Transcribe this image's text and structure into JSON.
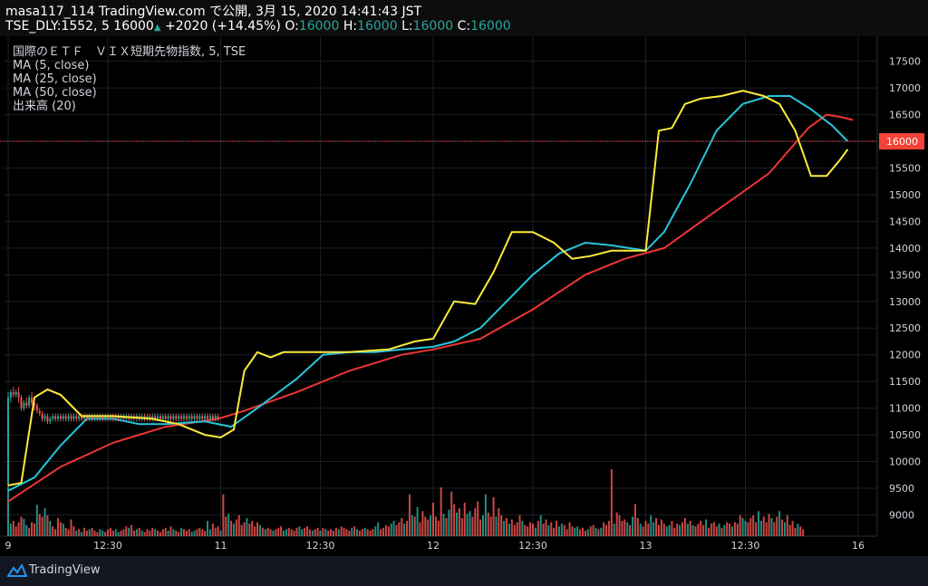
{
  "header": {
    "publisher": "masa117_114 TradingView.com で公開, 3月 15, 2020 14:41:43 JST",
    "symbol_line": "TSE_DLY:1552, 5 16000",
    "change": "+2020 (+14.45%)",
    "o_label": "O:",
    "o_value": "16000",
    "h_label": "H:",
    "h_value": "16000",
    "l_label": "L:",
    "l_value": "16000",
    "c_label": "C:",
    "c_value": "16000"
  },
  "legend": [
    "国際のＥＴＦ　ＶＩＸ短期先物指数, 5, TSE",
    "MA (5, close)",
    "MA (25, close)",
    "MA (50, close)",
    "出来高 (20)"
  ],
  "footer": {
    "brand": "TradingView"
  },
  "colors": {
    "up": "#26a69a",
    "down": "#ef5350",
    "ma5": "#ffeb3b",
    "ma25": "#26c6da",
    "ma50": "#ef3535",
    "price_line": "#ef5350",
    "price_badge": "#f44336"
  },
  "chart_data": {
    "type": "candlestick",
    "ylim": [
      8600,
      17800
    ],
    "y_ticks": [
      9000,
      9500,
      10000,
      10500,
      11000,
      11500,
      12000,
      12500,
      13000,
      13500,
      14000,
      14500,
      15000,
      15500,
      16000,
      16500,
      17000,
      17500
    ],
    "x_ticks": [
      {
        "label": "9",
        "i": 0
      },
      {
        "label": "12:30",
        "i": 38
      },
      {
        "label": "11",
        "i": 81
      },
      {
        "label": "12:30",
        "i": 119
      },
      {
        "label": "12",
        "i": 162
      },
      {
        "label": "12:30",
        "i": 200
      },
      {
        "label": "13",
        "i": 243
      },
      {
        "label": "12:30",
        "i": 281
      },
      {
        "label": "16",
        "i": 324
      }
    ],
    "last_price": 16000,
    "ma5": [
      [
        0,
        9550
      ],
      [
        5,
        9600
      ],
      [
        10,
        11200
      ],
      [
        15,
        11350
      ],
      [
        20,
        11250
      ],
      [
        28,
        10850
      ],
      [
        40,
        10850
      ],
      [
        55,
        10800
      ],
      [
        65,
        10700
      ],
      [
        75,
        10500
      ],
      [
        81,
        10450
      ],
      [
        86,
        10600
      ],
      [
        90,
        11700
      ],
      [
        95,
        12050
      ],
      [
        100,
        11950
      ],
      [
        105,
        12050
      ],
      [
        115,
        12050
      ],
      [
        130,
        12050
      ],
      [
        145,
        12100
      ],
      [
        155,
        12250
      ],
      [
        162,
        12300
      ],
      [
        170,
        13000
      ],
      [
        178,
        12950
      ],
      [
        185,
        13550
      ],
      [
        192,
        14300
      ],
      [
        200,
        14300
      ],
      [
        208,
        14100
      ],
      [
        215,
        13800
      ],
      [
        222,
        13850
      ],
      [
        230,
        13950
      ],
      [
        243,
        13950
      ],
      [
        248,
        16200
      ],
      [
        253,
        16250
      ],
      [
        258,
        16700
      ],
      [
        264,
        16800
      ],
      [
        272,
        16850
      ],
      [
        280,
        16950
      ],
      [
        288,
        16850
      ],
      [
        294,
        16700
      ],
      [
        300,
        16200
      ],
      [
        306,
        15350
      ],
      [
        312,
        15350
      ],
      [
        317,
        15650
      ],
      [
        320,
        15850
      ]
    ],
    "ma25": [
      [
        0,
        9450
      ],
      [
        10,
        9700
      ],
      [
        20,
        10300
      ],
      [
        30,
        10800
      ],
      [
        40,
        10800
      ],
      [
        50,
        10700
      ],
      [
        60,
        10700
      ],
      [
        75,
        10750
      ],
      [
        85,
        10650
      ],
      [
        95,
        11000
      ],
      [
        110,
        11550
      ],
      [
        120,
        12000
      ],
      [
        130,
        12050
      ],
      [
        140,
        12050
      ],
      [
        150,
        12100
      ],
      [
        162,
        12150
      ],
      [
        170,
        12250
      ],
      [
        180,
        12500
      ],
      [
        190,
        13000
      ],
      [
        200,
        13500
      ],
      [
        210,
        13900
      ],
      [
        220,
        14100
      ],
      [
        230,
        14050
      ],
      [
        243,
        13950
      ],
      [
        250,
        14300
      ],
      [
        260,
        15200
      ],
      [
        270,
        16200
      ],
      [
        280,
        16700
      ],
      [
        290,
        16850
      ],
      [
        298,
        16850
      ],
      [
        306,
        16600
      ],
      [
        314,
        16300
      ],
      [
        320,
        16000
      ]
    ],
    "ma50": [
      [
        0,
        9250
      ],
      [
        20,
        9900
      ],
      [
        40,
        10350
      ],
      [
        60,
        10650
      ],
      [
        80,
        10800
      ],
      [
        90,
        10950
      ],
      [
        110,
        11300
      ],
      [
        130,
        11700
      ],
      [
        150,
        12000
      ],
      [
        162,
        12100
      ],
      [
        180,
        12300
      ],
      [
        200,
        12850
      ],
      [
        220,
        13500
      ],
      [
        235,
        13800
      ],
      [
        250,
        14000
      ],
      [
        270,
        14700
      ],
      [
        290,
        15400
      ],
      [
        305,
        16250
      ],
      [
        312,
        16500
      ],
      [
        318,
        16450
      ],
      [
        322,
        16400
      ]
    ],
    "candles": [
      [
        0,
        9550,
        11200,
        9500,
        11300
      ],
      [
        1,
        11200,
        11300,
        11100,
        11350
      ],
      [
        2,
        11300,
        11250,
        11200,
        11400
      ],
      [
        3,
        11250,
        11300,
        11200,
        11350
      ],
      [
        4,
        11300,
        11200,
        11100,
        11400
      ],
      [
        5,
        11200,
        11000,
        10950,
        11250
      ],
      [
        6,
        11000,
        11100,
        10950,
        11150
      ],
      [
        7,
        11100,
        11050,
        11000,
        11200
      ],
      [
        8,
        11050,
        11200,
        11000,
        11250
      ],
      [
        9,
        11200,
        11100,
        11050,
        11300
      ],
      [
        10,
        11100,
        11050,
        10950,
        11150
      ],
      [
        11,
        11050,
        10950,
        10900,
        11100
      ],
      [
        12,
        10950,
        10900,
        10850,
        11000
      ],
      [
        13,
        10900,
        10800,
        10750,
        10950
      ],
      [
        14,
        10800,
        10850,
        10750,
        10900
      ],
      [
        15,
        10850,
        10750,
        10700,
        10900
      ],
      [
        16,
        10750,
        10800,
        10700,
        10850
      ],
      [
        17,
        10800,
        10850,
        10750,
        10900
      ],
      [
        18,
        10850,
        10800,
        10750,
        10900
      ],
      [
        19,
        10800,
        10850,
        10750,
        10900
      ],
      [
        20,
        10850,
        10800,
        10750,
        10900
      ],
      [
        21,
        10800,
        10850,
        10750,
        10900
      ],
      [
        22,
        10850,
        10800,
        10750,
        10900
      ],
      [
        23,
        10800,
        10850,
        10750,
        10900
      ],
      [
        24,
        10850,
        10800,
        10750,
        10900
      ],
      [
        25,
        10800,
        10850,
        10750,
        10900
      ],
      [
        26,
        10850,
        10800,
        10750,
        10900
      ],
      [
        27,
        10800,
        10850,
        10750,
        10900
      ],
      [
        28,
        10850,
        10800,
        10750,
        10900
      ],
      [
        29,
        10800,
        10850,
        10750,
        10900
      ],
      [
        30,
        10850,
        10800,
        10750,
        10900
      ],
      [
        31,
        10800,
        10850,
        10750,
        10900
      ],
      [
        32,
        10850,
        10800,
        10750,
        10900
      ],
      [
        33,
        10800,
        10850,
        10750,
        10900
      ],
      [
        34,
        10850,
        10800,
        10750,
        10900
      ],
      [
        35,
        10800,
        10850,
        10750,
        10900
      ],
      [
        36,
        10850,
        10800,
        10750,
        10900
      ],
      [
        37,
        10800,
        10850,
        10750,
        10900
      ],
      [
        38,
        10850,
        10800,
        10750,
        10900
      ],
      [
        39,
        10800,
        10850,
        10750,
        10900
      ],
      [
        40,
        10850,
        10800,
        10750,
        10900
      ],
      [
        41,
        10800,
        10850,
        10750,
        10900
      ],
      [
        42,
        10850,
        10800,
        10750,
        10900
      ],
      [
        43,
        10800,
        10850,
        10750,
        10900
      ],
      [
        44,
        10850,
        10800,
        10750,
        10900
      ],
      [
        45,
        10800,
        10850,
        10750,
        10900
      ],
      [
        46,
        10850,
        10800,
        10750,
        10900
      ],
      [
        47,
        10800,
        10850,
        10750,
        10900
      ],
      [
        48,
        10850,
        10800,
        10750,
        10900
      ],
      [
        49,
        10800,
        10850,
        10750,
        10900
      ],
      [
        50,
        10850,
        10800,
        10750,
        10900
      ],
      [
        51,
        10800,
        10850,
        10750,
        10900
      ],
      [
        52,
        10850,
        10800,
        10750,
        10900
      ],
      [
        53,
        10800,
        10850,
        10750,
        10900
      ],
      [
        54,
        10850,
        10800,
        10750,
        10900
      ],
      [
        55,
        10800,
        10850,
        10750,
        10900
      ],
      [
        56,
        10850,
        10800,
        10750,
        10900
      ],
      [
        57,
        10800,
        10850,
        10750,
        10900
      ],
      [
        58,
        10850,
        10800,
        10750,
        10900
      ],
      [
        59,
        10800,
        10850,
        10750,
        10900
      ],
      [
        60,
        10850,
        10800,
        10750,
        10900
      ],
      [
        61,
        10800,
        10850,
        10750,
        10900
      ],
      [
        62,
        10850,
        10800,
        10750,
        10900
      ],
      [
        63,
        10800,
        10850,
        10750,
        10900
      ],
      [
        64,
        10850,
        10800,
        10750,
        10900
      ],
      [
        65,
        10800,
        10850,
        10750,
        10900
      ],
      [
        66,
        10850,
        10800,
        10750,
        10900
      ],
      [
        67,
        10800,
        10850,
        10750,
        10900
      ],
      [
        68,
        10850,
        10800,
        10750,
        10900
      ],
      [
        69,
        10800,
        10850,
        10750,
        10900
      ],
      [
        70,
        10850,
        10800,
        10750,
        10900
      ],
      [
        71,
        10800,
        10850,
        10750,
        10900
      ],
      [
        72,
        10850,
        10800,
        10750,
        10900
      ],
      [
        73,
        10800,
        10850,
        10750,
        10900
      ],
      [
        74,
        10850,
        10800,
        10750,
        10900
      ],
      [
        75,
        10800,
        10850,
        10750,
        10900
      ],
      [
        76,
        10850,
        10800,
        10750,
        10900
      ],
      [
        77,
        10800,
        10850,
        10750,
        10900
      ],
      [
        78,
        10850,
        10800,
        10750,
        10900
      ],
      [
        79,
        10800,
        10850,
        10750,
        10900
      ],
      [
        80,
        10850,
        10800,
        10750,
        10900
      ]
    ],
    "volume": {
      "ylim": [
        0,
        100
      ],
      "values": [
        70,
        18,
        22,
        14,
        20,
        28,
        25,
        16,
        12,
        20,
        18,
        45,
        32,
        28,
        40,
        30,
        22,
        14,
        10,
        26,
        20,
        18,
        12,
        10,
        24,
        14,
        8,
        10,
        6,
        12,
        8,
        10,
        12,
        8,
        6,
        10,
        8,
        6,
        10,
        12,
        8,
        10,
        6,
        8,
        10,
        14,
        12,
        16,
        8,
        10,
        12,
        8,
        6,
        10,
        8,
        12,
        10,
        8,
        6,
        10,
        12,
        8,
        14,
        10,
        8,
        6,
        12,
        10,
        8,
        10,
        6,
        8,
        10,
        12,
        10,
        8,
        22,
        10,
        18,
        12,
        14,
        8,
        60,
        28,
        32,
        22,
        18,
        24,
        30,
        16,
        20,
        26,
        18,
        22,
        14,
        20,
        16,
        12,
        10,
        12,
        10,
        8,
        10,
        12,
        14,
        8,
        10,
        12,
        10,
        8,
        12,
        14,
        10,
        12,
        14,
        10,
        8,
        10,
        12,
        8,
        12,
        10,
        8,
        10,
        8,
        12,
        10,
        14,
        12,
        10,
        8,
        12,
        14,
        10,
        8,
        10,
        12,
        10,
        8,
        10,
        14,
        20,
        10,
        12,
        16,
        14,
        18,
        22,
        16,
        20,
        26,
        18,
        22,
        60,
        30,
        28,
        42,
        20,
        36,
        28,
        24,
        30,
        48,
        28,
        22,
        70,
        32,
        26,
        38,
        64,
        46,
        34,
        40,
        26,
        48,
        32,
        36,
        28,
        40,
        50,
        24,
        30,
        60,
        34,
        28,
        56,
        28,
        40,
        30,
        22,
        26,
        18,
        24,
        16,
        20,
        30,
        22,
        16,
        14,
        20,
        18,
        12,
        22,
        30,
        18,
        24,
        16,
        20,
        12,
        22,
        14,
        18,
        16,
        10,
        20,
        14,
        12,
        14,
        10,
        12,
        8,
        10,
        14,
        16,
        12,
        10,
        12,
        20,
        16,
        22,
        96,
        18,
        34,
        30,
        22,
        24,
        20,
        16,
        28,
        46,
        26,
        18,
        14,
        22,
        18,
        30,
        20,
        26,
        16,
        24,
        18,
        14,
        16,
        22,
        12,
        18,
        16,
        20,
        26,
        18,
        22,
        16,
        14,
        18,
        22,
        16,
        24,
        12,
        18,
        20,
        14,
        18,
        12,
        16,
        20,
        18,
        14,
        20,
        18,
        30,
        26,
        22,
        20,
        26,
        30,
        20,
        36,
        22,
        28,
        20,
        32,
        26,
        20,
        28,
        36,
        24,
        20,
        30,
        16,
        22,
        12,
        18,
        14,
        10
      ]
    }
  }
}
